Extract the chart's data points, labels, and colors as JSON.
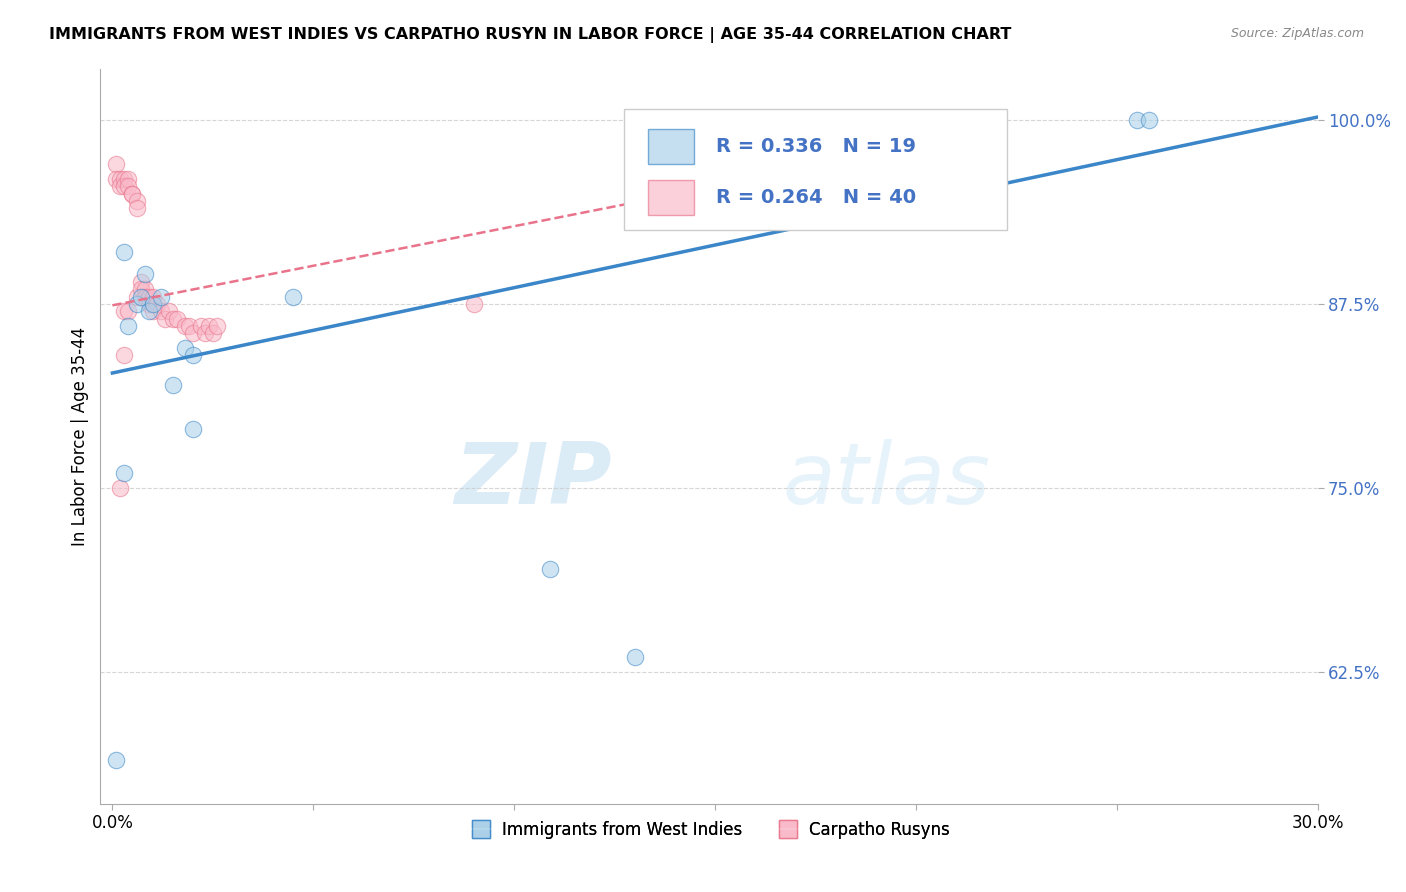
{
  "title": "IMMIGRANTS FROM WEST INDIES VS CARPATHO RUSYN IN LABOR FORCE | AGE 35-44 CORRELATION CHART",
  "source": "Source: ZipAtlas.com",
  "ylabel": "In Labor Force | Age 35-44",
  "xlim": [
    -0.003,
    0.3
  ],
  "ylim": [
    0.535,
    1.035
  ],
  "yticks": [
    0.625,
    0.75,
    0.875,
    1.0
  ],
  "ytick_labels": [
    "62.5%",
    "75.0%",
    "87.5%",
    "100.0%"
  ],
  "xticks": [
    0.0,
    0.05,
    0.1,
    0.15,
    0.2,
    0.25,
    0.3
  ],
  "xtick_labels": [
    "0.0%",
    "",
    "",
    "",
    "",
    "",
    "30.0%"
  ],
  "legend_label1": "Immigrants from West Indies",
  "legend_label2": "Carpatho Rusyns",
  "R1": 0.336,
  "N1": 19,
  "R2": 0.264,
  "N2": 40,
  "color_blue": "#a8cfe8",
  "color_pink": "#f9b8c8",
  "trendline_blue": "#3a86c8",
  "trendline_pink": "#e8738a",
  "watermark_zip": "ZIP",
  "watermark_atlas": "atlas",
  "west_indies_x": [
    0.001,
    0.003,
    0.004,
    0.006,
    0.007,
    0.008,
    0.009,
    0.01,
    0.012,
    0.015,
    0.018,
    0.02,
    0.003,
    0.109,
    0.13,
    0.255,
    0.258,
    0.02,
    0.045
  ],
  "west_indies_y": [
    0.565,
    0.91,
    0.86,
    0.875,
    0.88,
    0.895,
    0.87,
    0.875,
    0.88,
    0.82,
    0.845,
    0.79,
    0.76,
    0.695,
    0.635,
    1.0,
    1.0,
    0.84,
    0.88
  ],
  "carpatho_x": [
    0.001,
    0.001,
    0.002,
    0.002,
    0.003,
    0.003,
    0.004,
    0.004,
    0.005,
    0.005,
    0.006,
    0.006,
    0.006,
    0.007,
    0.007,
    0.008,
    0.008,
    0.009,
    0.009,
    0.01,
    0.01,
    0.011,
    0.012,
    0.013,
    0.014,
    0.015,
    0.016,
    0.018,
    0.019,
    0.02,
    0.022,
    0.023,
    0.024,
    0.025,
    0.026,
    0.003,
    0.004,
    0.09,
    0.002,
    0.003
  ],
  "carpatho_y": [
    0.97,
    0.96,
    0.96,
    0.955,
    0.96,
    0.955,
    0.96,
    0.955,
    0.95,
    0.95,
    0.945,
    0.94,
    0.88,
    0.89,
    0.885,
    0.885,
    0.88,
    0.875,
    0.88,
    0.88,
    0.87,
    0.875,
    0.87,
    0.865,
    0.87,
    0.865,
    0.865,
    0.86,
    0.86,
    0.855,
    0.86,
    0.855,
    0.86,
    0.855,
    0.86,
    0.87,
    0.87,
    0.875,
    0.75,
    0.84
  ],
  "trend_blue_x0": 0.0,
  "trend_blue_x1": 0.3,
  "trend_blue_y0": 0.828,
  "trend_blue_y1": 1.002,
  "trend_pink_x0": 0.0,
  "trend_pink_x1": 0.145,
  "trend_pink_y0": 0.874,
  "trend_pink_y1": 0.952
}
